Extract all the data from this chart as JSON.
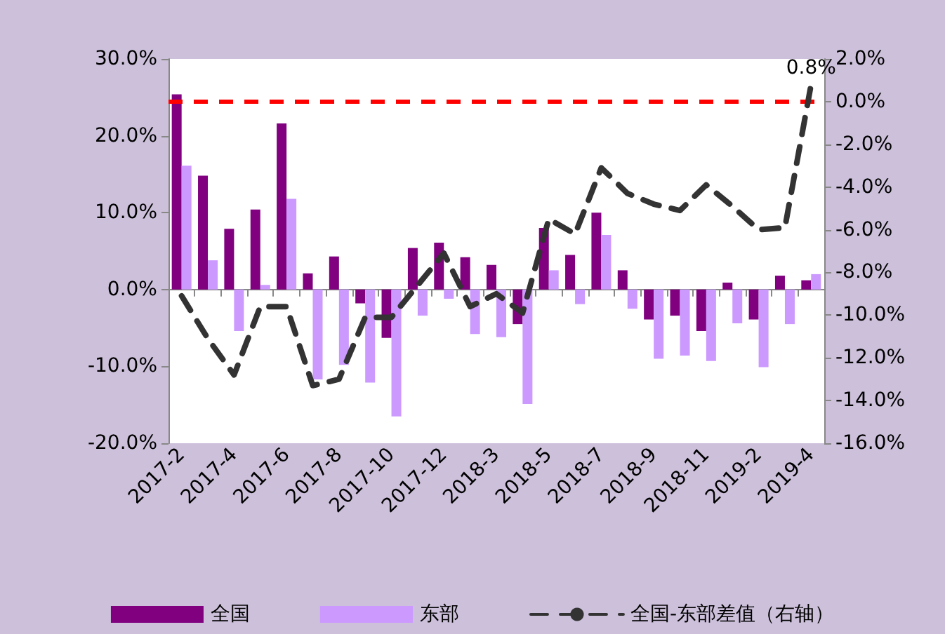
{
  "chart_data": {
    "type": "bar",
    "categories": [
      "2017-2",
      null,
      "2017-4",
      null,
      "2017-6",
      null,
      "2017-8",
      null,
      "2017-10",
      null,
      "2017-12",
      null,
      "2018-3",
      null,
      "2018-5",
      null,
      "2018-7",
      null,
      "2018-9",
      null,
      "2018-11",
      null,
      "2019-2",
      null,
      "2019-4"
    ],
    "series": [
      {
        "name": "全国",
        "color": "#800080",
        "values": [
          25.4,
          14.8,
          7.9,
          10.4,
          21.6,
          2.1,
          4.3,
          -1.8,
          -6.3,
          5.4,
          6.1,
          4.2,
          3.2,
          -4.5,
          8.0,
          4.5,
          10.0,
          2.5,
          -3.9,
          -3.4,
          -5.4,
          0.9,
          -3.9,
          1.8,
          1.2
        ]
      },
      {
        "name": "东部",
        "color": "#cc99ff",
        "values": [
          16.1,
          3.8,
          -5.4,
          0.6,
          11.8,
          -11.7,
          -9.8,
          -12.1,
          -16.5,
          -3.4,
          -1.2,
          -5.8,
          -6.2,
          -14.9,
          2.5,
          -1.9,
          7.1,
          -2.5,
          -9.0,
          -8.6,
          -9.3,
          -4.4,
          -10.1,
          -4.5,
          2.0
        ]
      },
      {
        "name": "全国-东部差值（右轴）",
        "type": "line",
        "axis": "y2",
        "color": "#333333",
        "line_style": "dashed",
        "marker": "none",
        "values": [
          -9.1,
          -11.1,
          -12.8,
          -9.6,
          -9.6,
          -13.3,
          -13.0,
          -10.1,
          -10.1,
          -8.6,
          -7.1,
          -9.6,
          -9.0,
          -9.9,
          -5.5,
          -6.2,
          -3.1,
          -4.3,
          -4.8,
          -5.1,
          -3.9,
          -4.9,
          -6.0,
          -5.9,
          0.8
        ],
        "value_labels": [
          null,
          null,
          null,
          null,
          null,
          null,
          null,
          null,
          null,
          null,
          null,
          null,
          null,
          null,
          null,
          null,
          null,
          null,
          null,
          null,
          null,
          null,
          null,
          null,
          "0.8%"
        ]
      }
    ],
    "ylim": [
      -20,
      30
    ],
    "yticks": [
      {
        "value": -20,
        "label": "-20.0%"
      },
      {
        "value": -10,
        "label": "-10.0%"
      },
      {
        "value": 0,
        "label": "0.0%"
      },
      {
        "value": 10,
        "label": "10.0%"
      },
      {
        "value": 20,
        "label": "20.0%"
      },
      {
        "value": 30,
        "label": "30.0%"
      }
    ],
    "y2lim": [
      -16,
      2
    ],
    "y2ticks": [
      {
        "value": -16,
        "label": "-16.0%"
      },
      {
        "value": -14,
        "label": "-14.0%"
      },
      {
        "value": -12,
        "label": "-12.0%"
      },
      {
        "value": -10,
        "label": "-10.0%"
      },
      {
        "value": -8,
        "label": "-8.0%"
      },
      {
        "value": -6,
        "label": "-6.0%"
      },
      {
        "value": -4,
        "label": "-4.0%"
      },
      {
        "value": -2,
        "label": "-2.0%"
      },
      {
        "value": 0,
        "label": "0.0%"
      },
      {
        "value": 2,
        "label": "2.0%"
      }
    ],
    "ref_lines": [
      {
        "axis": "y2",
        "value": 0,
        "color": "#ff0000",
        "line_style": "dashed"
      }
    ],
    "grid": false,
    "legend": "bottom"
  }
}
